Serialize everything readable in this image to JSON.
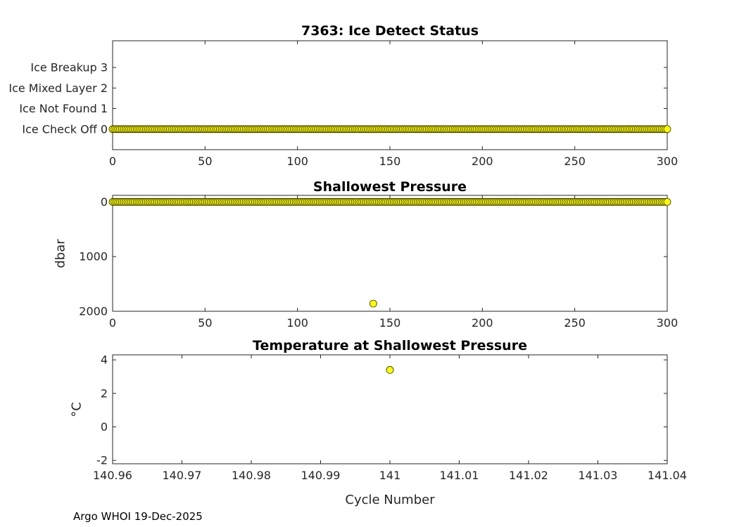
{
  "figure": {
    "footer": "Argo WHOI 19-Dec-2025"
  },
  "chart_data": [
    {
      "type": "scatter",
      "title": "7363: Ice Detect Status",
      "xlabel": "",
      "ylabel": "",
      "grid": false,
      "legend": null,
      "xlim": [
        0,
        300
      ],
      "ylim_bottom_top": [
        -1,
        4.3
      ],
      "marker": {
        "shape": "circle",
        "fill": "#ffff00",
        "edge": "#333300",
        "radius": 5
      },
      "xticks": [
        {
          "value": 0,
          "label": "0"
        },
        {
          "value": 50,
          "label": "50"
        },
        {
          "value": 100,
          "label": "100"
        },
        {
          "value": 150,
          "label": "150"
        },
        {
          "value": 200,
          "label": "200"
        },
        {
          "value": 250,
          "label": "250"
        },
        {
          "value": 300,
          "label": "300"
        }
      ],
      "yticks": [
        {
          "value": 3,
          "label": "Ice Breakup 3"
        },
        {
          "value": 2,
          "label": "Ice Mixed Layer 2"
        },
        {
          "value": 1,
          "label": "Ice Not Found 1"
        },
        {
          "value": 0,
          "label": "Ice Check Off 0"
        }
      ],
      "series": [
        {
          "name": "ice-detect-status",
          "run": {
            "x_from": 0,
            "x_to": 300,
            "step": 1,
            "y": 0
          },
          "points": []
        }
      ]
    },
    {
      "type": "scatter",
      "title": "Shallowest Pressure",
      "xlabel": "",
      "ylabel": "dbar",
      "grid": false,
      "legend": null,
      "y_axis_reversed": true,
      "xlim": [
        0,
        300
      ],
      "ylim_bottom_top": [
        2000,
        -120
      ],
      "marker": {
        "shape": "circle",
        "fill": "#ffff00",
        "edge": "#333300",
        "radius": 5
      },
      "xticks": [
        {
          "value": 0,
          "label": "0"
        },
        {
          "value": 50,
          "label": "50"
        },
        {
          "value": 100,
          "label": "100"
        },
        {
          "value": 150,
          "label": "150"
        },
        {
          "value": 200,
          "label": "200"
        },
        {
          "value": 250,
          "label": "250"
        },
        {
          "value": 300,
          "label": "300"
        }
      ],
      "yticks": [
        {
          "value": 0,
          "label": "0"
        },
        {
          "value": 1000,
          "label": "1000"
        },
        {
          "value": 2000,
          "label": "2000"
        }
      ],
      "series": [
        {
          "name": "shallowest-pressure",
          "run": {
            "x_from": 0,
            "x_to": 300,
            "step": 1,
            "y": 0
          },
          "points": [
            [
              141,
              1860
            ]
          ]
        }
      ]
    },
    {
      "type": "scatter",
      "title": "Temperature at Shallowest Pressure",
      "xlabel": "Cycle Number",
      "ylabel": "°C",
      "grid": false,
      "legend": null,
      "xlim": [
        140.96,
        141.04
      ],
      "ylim_bottom_top": [
        -2.2,
        4.3
      ],
      "marker": {
        "shape": "circle",
        "fill": "#ffff00",
        "edge": "#333300",
        "radius": 5
      },
      "xticks": [
        {
          "value": 140.96,
          "label": "140.96"
        },
        {
          "value": 140.97,
          "label": "140.97"
        },
        {
          "value": 140.98,
          "label": "140.98"
        },
        {
          "value": 140.99,
          "label": "140.99"
        },
        {
          "value": 141,
          "label": "141"
        },
        {
          "value": 141.01,
          "label": "141.01"
        },
        {
          "value": 141.02,
          "label": "141.02"
        },
        {
          "value": 141.03,
          "label": "141.03"
        },
        {
          "value": 141.04,
          "label": "141.04"
        }
      ],
      "yticks": [
        {
          "value": 4,
          "label": "4"
        },
        {
          "value": 2,
          "label": "2"
        },
        {
          "value": 0,
          "label": "0"
        },
        {
          "value": -2,
          "label": "-2"
        }
      ],
      "series": [
        {
          "name": "temperature-at-shallowest-pressure",
          "points": [
            [
              141,
              3.4
            ]
          ]
        }
      ]
    }
  ]
}
